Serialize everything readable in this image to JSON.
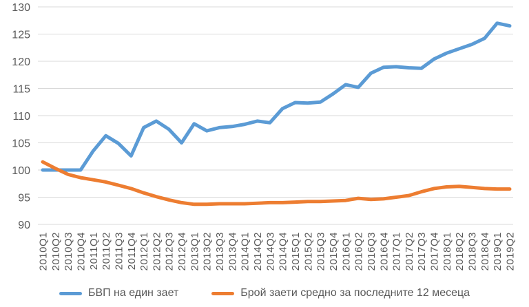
{
  "chart_data": {
    "type": "line",
    "title": "",
    "categories": [
      "2010Q1",
      "2010Q2",
      "2010Q3",
      "2010Q4",
      "2011Q1",
      "2011Q2",
      "2011Q3",
      "2011Q4",
      "2012Q1",
      "2012Q2",
      "2012Q3",
      "2012Q4",
      "2013Q1",
      "2013Q2",
      "2013Q3",
      "2013Q4",
      "2014Q1",
      "2014Q2",
      "2014Q3",
      "2014Q4",
      "2015Q1",
      "2015Q2",
      "2015Q3",
      "2015Q4",
      "2016Q1",
      "2016Q2",
      "2016Q3",
      "2016Q4",
      "2017Q1",
      "2017Q2",
      "2017Q3",
      "2017Q4",
      "2018Q1",
      "2018Q2",
      "2018Q3",
      "2018Q4",
      "2019Q1",
      "2019Q2"
    ],
    "series": [
      {
        "name": "БВП на един зает",
        "color": "#5B9BD5",
        "values": [
          100,
          100,
          100,
          100,
          103.5,
          106.3,
          104.9,
          102.6,
          107.8,
          109,
          107.5,
          105,
          108.5,
          107.2,
          107.8,
          108,
          108.4,
          109,
          108.7,
          111.3,
          112.4,
          112.3,
          112.5,
          114,
          115.7,
          115.2,
          117.8,
          118.9,
          119,
          118.8,
          118.7,
          120.4,
          121.5,
          122.3,
          123.1,
          124.2,
          127,
          126.5
        ]
      },
      {
        "name": "Брой заети средно за последните 12 месеца",
        "color": "#ED7D31",
        "values": [
          101.5,
          100.3,
          99.2,
          98.6,
          98.2,
          97.8,
          97.2,
          96.6,
          95.8,
          95.1,
          94.5,
          94,
          93.7,
          93.7,
          93.8,
          93.8,
          93.8,
          93.9,
          94,
          94,
          94.1,
          94.2,
          94.2,
          94.3,
          94.4,
          94.8,
          94.6,
          94.7,
          95,
          95.3,
          96,
          96.6,
          96.9,
          97,
          96.8,
          96.6,
          96.5,
          96.5
        ]
      }
    ],
    "xlabel": "",
    "ylabel": "",
    "ylim": [
      90,
      130
    ],
    "yticks": [
      90,
      95,
      100,
      105,
      110,
      115,
      120,
      125,
      130
    ],
    "grid": "horizontal",
    "legend_position": "bottom",
    "axis_label_color": "#595959",
    "gridline_color": "#D9D9D9",
    "background": "#FFFFFF"
  }
}
